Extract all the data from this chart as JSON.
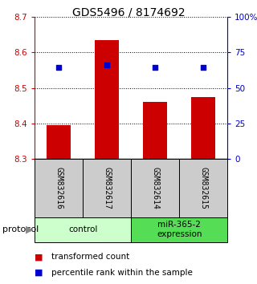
{
  "title": "GDS5496 / 8174692",
  "samples": [
    "GSM832616",
    "GSM832617",
    "GSM832614",
    "GSM832615"
  ],
  "bar_values": [
    8.395,
    8.635,
    8.46,
    8.475
  ],
  "bar_base": 8.3,
  "percentile_values": [
    8.558,
    8.566,
    8.558,
    8.558
  ],
  "ylim_left": [
    8.3,
    8.7
  ],
  "ylim_right": [
    0,
    100
  ],
  "yticks_left": [
    8.3,
    8.4,
    8.5,
    8.6,
    8.7
  ],
  "yticks_right": [
    0,
    25,
    50,
    75,
    100
  ],
  "bar_color": "#cc0000",
  "percentile_color": "#0000cc",
  "groups": [
    {
      "label": "control",
      "samples": [
        0,
        1
      ],
      "color": "#ccffcc"
    },
    {
      "label": "miR-365-2\nexpression",
      "samples": [
        2,
        3
      ],
      "color": "#55dd55"
    }
  ],
  "sample_box_color": "#cccccc",
  "legend_bar_label": "transformed count",
  "legend_pct_label": "percentile rank within the sample",
  "protocol_label": "protocol",
  "background_color": "#ffffff",
  "title_fontsize": 10,
  "tick_fontsize": 7.5,
  "sample_fontsize": 7,
  "group_fontsize": 7.5,
  "legend_fontsize": 7.5,
  "protocol_fontsize": 8
}
